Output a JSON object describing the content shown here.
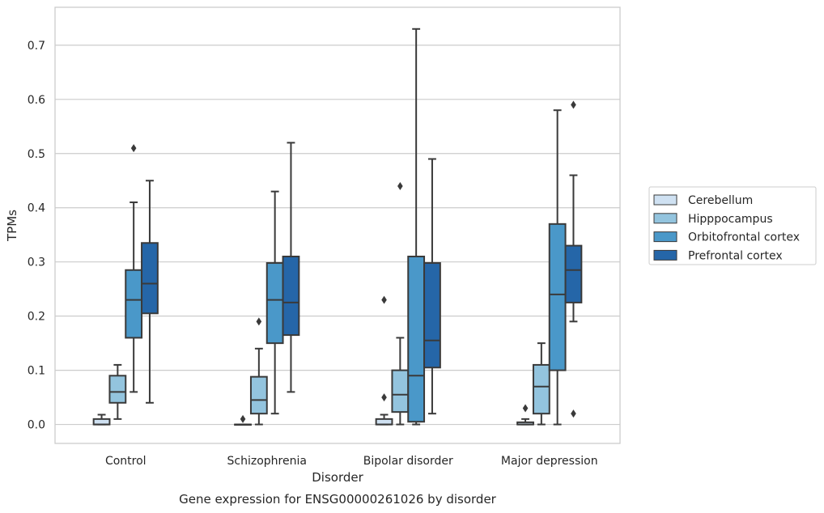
{
  "chart_data": {
    "type": "box",
    "title": "",
    "caption": "Gene expression for ENSG00000261026 by disorder",
    "xlabel": "Disorder",
    "ylabel": "TPMs",
    "ylim": [
      -0.035,
      0.77
    ],
    "yticks": [
      "0.0",
      "0.1",
      "0.2",
      "0.3",
      "0.4",
      "0.5",
      "0.6",
      "0.7"
    ],
    "grid": "horizontal",
    "legend_position": "right",
    "categories": [
      "Control",
      "Schizophrenia",
      "Bipolar disorder",
      "Major depression"
    ],
    "series": [
      {
        "name": "Cerebellum",
        "color": "#cfe1f2",
        "boxes": [
          {
            "whislo": 0.0,
            "q1": 0.0,
            "med": 0.0,
            "q3": 0.01,
            "whishi": 0.018,
            "fliers": []
          },
          {
            "whislo": 0.0,
            "q1": 0.0,
            "med": 0.0,
            "q3": 0.0,
            "whishi": 0.0,
            "fliers": [
              0.01
            ]
          },
          {
            "whislo": 0.0,
            "q1": 0.0,
            "med": 0.0,
            "q3": 0.01,
            "whishi": 0.018,
            "fliers": [
              0.05,
              0.23
            ]
          },
          {
            "whislo": 0.0,
            "q1": 0.0,
            "med": 0.0,
            "q3": 0.004,
            "whishi": 0.01,
            "fliers": [
              0.03
            ]
          }
        ]
      },
      {
        "name": "Hipppocampus",
        "color": "#93c4de",
        "boxes": [
          {
            "whislo": 0.01,
            "q1": 0.04,
            "med": 0.06,
            "q3": 0.09,
            "whishi": 0.11,
            "fliers": []
          },
          {
            "whislo": 0.0,
            "q1": 0.02,
            "med": 0.045,
            "q3": 0.088,
            "whishi": 0.14,
            "fliers": [
              0.19
            ]
          },
          {
            "whislo": 0.0,
            "q1": 0.023,
            "med": 0.055,
            "q3": 0.1,
            "whishi": 0.16,
            "fliers": [
              0.44
            ]
          },
          {
            "whislo": 0.0,
            "q1": 0.02,
            "med": 0.07,
            "q3": 0.11,
            "whishi": 0.15,
            "fliers": []
          }
        ]
      },
      {
        "name": "Orbitofrontal cortex",
        "color": "#4a98c9",
        "boxes": [
          {
            "whislo": 0.06,
            "q1": 0.16,
            "med": 0.23,
            "q3": 0.285,
            "whishi": 0.41,
            "fliers": [
              0.51
            ]
          },
          {
            "whislo": 0.02,
            "q1": 0.15,
            "med": 0.23,
            "q3": 0.298,
            "whishi": 0.43,
            "fliers": []
          },
          {
            "whislo": 0.0,
            "q1": 0.005,
            "med": 0.09,
            "q3": 0.31,
            "whishi": 0.73,
            "fliers": []
          },
          {
            "whislo": 0.0,
            "q1": 0.1,
            "med": 0.24,
            "q3": 0.37,
            "whishi": 0.58,
            "fliers": []
          }
        ]
      },
      {
        "name": "Prefrontal cortex",
        "color": "#2566a8",
        "boxes": [
          {
            "whislo": 0.04,
            "q1": 0.205,
            "med": 0.26,
            "q3": 0.335,
            "whishi": 0.45,
            "fliers": []
          },
          {
            "whislo": 0.06,
            "q1": 0.165,
            "med": 0.225,
            "q3": 0.31,
            "whishi": 0.52,
            "fliers": []
          },
          {
            "whislo": 0.02,
            "q1": 0.105,
            "med": 0.155,
            "q3": 0.298,
            "whishi": 0.49,
            "fliers": []
          },
          {
            "whislo": 0.19,
            "q1": 0.225,
            "med": 0.285,
            "q3": 0.33,
            "whishi": 0.46,
            "fliers": [
              0.02,
              0.59
            ]
          }
        ]
      }
    ]
  }
}
